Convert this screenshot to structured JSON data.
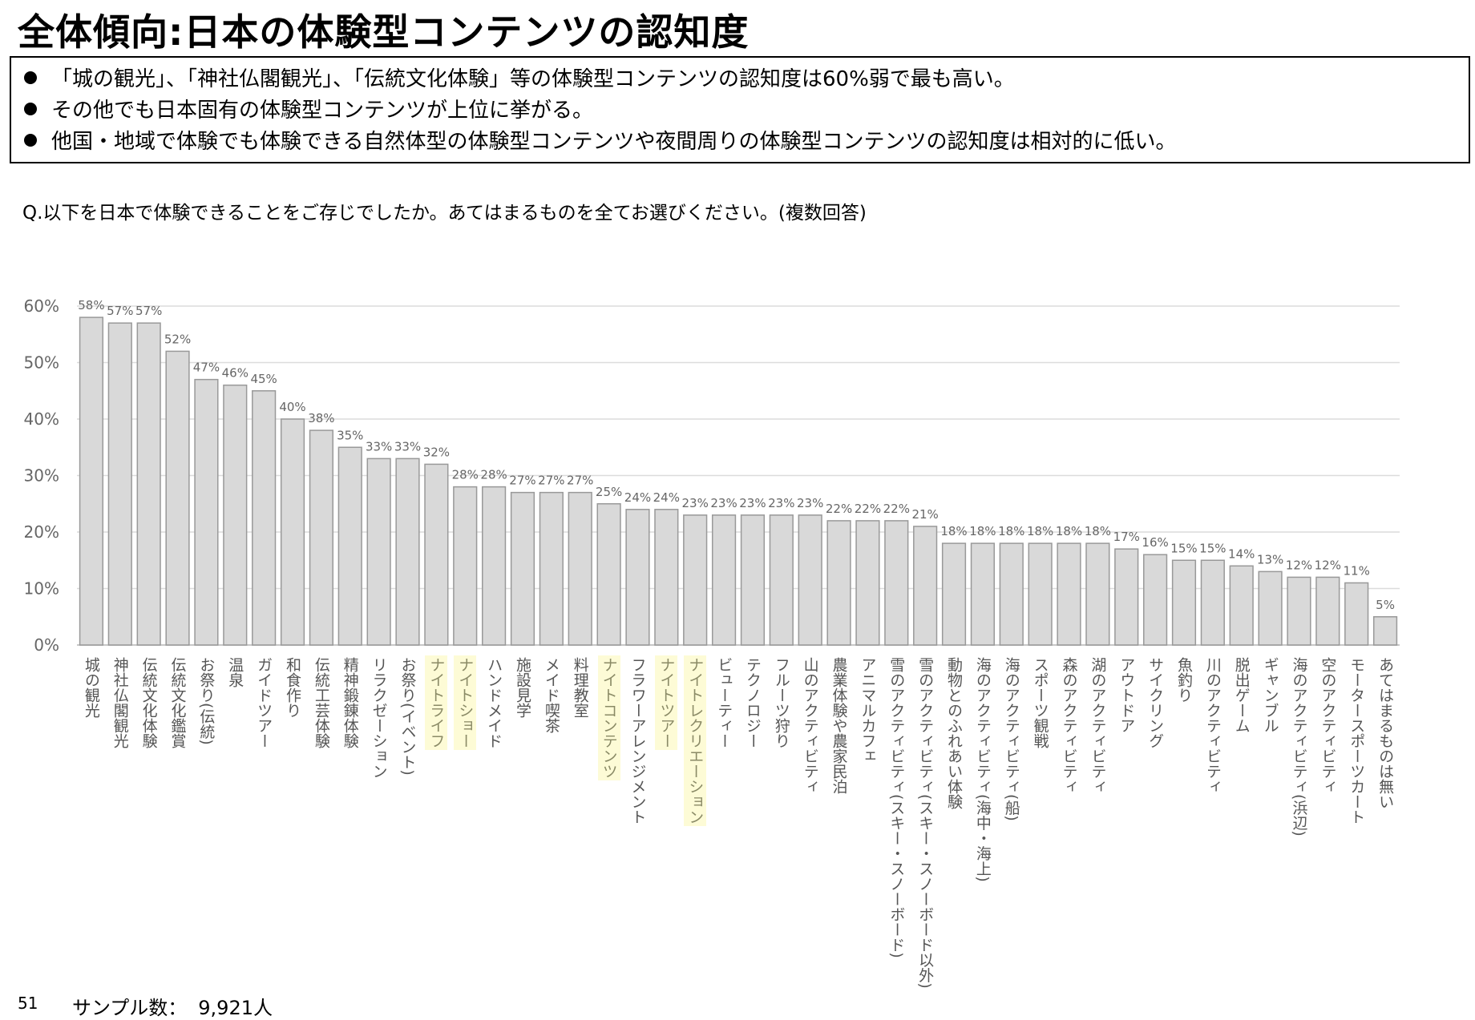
{
  "title": "全体傾向:日本の体験型コンテンツの認知度",
  "summary": [
    "「城の観光」、「神社仏閣観光」、「伝統文化体験」等の体験型コンテンツの認知度は60%弱で最も高い。",
    "その他でも日本固有の体験型コンテンツが上位に挙がる。",
    "他国・地域で体験でも体験できる自然体型の体験型コンテンツや夜間周りの体験型コンテンツの認知度は相対的に低い。"
  ],
  "question": "Q.以下を日本で体験できることをご存じでしたか。あてはまるものを全てお選びください。(複数回答)",
  "footer": {
    "page": "51",
    "sample_label": "サンプル数：",
    "sample_value": "9,921人"
  },
  "chart_data": {
    "type": "bar",
    "title": "",
    "xlabel": "",
    "ylabel": "",
    "ylim": [
      0,
      60
    ],
    "yticks": [
      "0%",
      "10%",
      "20%",
      "30%",
      "40%",
      "50%",
      "60%"
    ],
    "grid": true,
    "bar_color": "#d9d9d9",
    "highlight_color": "#fdfbd6",
    "categories": [
      "城の観光",
      "神社仏閣観光",
      "伝統文化体験",
      "伝統文化鑑賞",
      "お祭り(伝統)",
      "温泉",
      "ガイドツアー",
      "和食作り",
      "伝統工芸体験",
      "精神鍛錬体験",
      "リラクゼーション",
      "お祭り(イベント)",
      "ナイトライフ",
      "ナイトショー",
      "ハンドメイド",
      "施設見学",
      "メイド喫茶",
      "料理教室",
      "ナイトコンテンツ",
      "フラワーアレンジメント",
      "ナイトツアー",
      "ナイトレクリエーション",
      "ビューティー",
      "テクノロジー",
      "フルーツ狩り",
      "山のアクティビティ",
      "農業体験や農家民泊",
      "アニマルカフェ",
      "雪のアクティビティ(スキー・スノーボード)",
      "雪のアクティビティ(スキー・スノーボード以外)",
      "動物とのふれあい体験",
      "海のアクティビティ(海中・海上)",
      "海のアクティビティ(船)",
      "スポーツ観戦",
      "森のアクティビティ",
      "湖のアクティビティ",
      "アウトドア",
      "サイクリング",
      "魚釣り",
      "川のアクティビティ",
      "脱出ゲーム",
      "ギャンブル",
      "海のアクティビティ(浜辺)",
      "空のアクティビティ",
      "モータースポーツカート",
      "あてはまるものは無い"
    ],
    "values": [
      58,
      57,
      57,
      52,
      47,
      46,
      45,
      40,
      38,
      35,
      33,
      33,
      32,
      28,
      28,
      27,
      27,
      27,
      25,
      24,
      24,
      23,
      23,
      23,
      23,
      23,
      22,
      22,
      22,
      21,
      18,
      18,
      18,
      18,
      18,
      18,
      17,
      16,
      15,
      15,
      14,
      13,
      12,
      12,
      11,
      5
    ],
    "value_labels": [
      "58%",
      "57%",
      "57%",
      "52%",
      "47%",
      "46%",
      "45%",
      "40%",
      "38%",
      "35%",
      "33%",
      "33%",
      "32%",
      "28%",
      "28%",
      "27%",
      "27%",
      "27%",
      "25%",
      "24%",
      "24%",
      "23%",
      "23%",
      "23%",
      "23%",
      "23%",
      "22%",
      "22%",
      "22%",
      "21%",
      "18%",
      "18%",
      "18%",
      "18%",
      "18%",
      "18%",
      "17%",
      "16%",
      "15%",
      "15%",
      "14%",
      "13%",
      "12%",
      "12%",
      "11%",
      "5%"
    ],
    "highlighted": [
      "ナイトライフ",
      "ナイトショー",
      "ナイトコンテンツ",
      "ナイトツアー",
      "ナイトレクリエーション"
    ]
  }
}
